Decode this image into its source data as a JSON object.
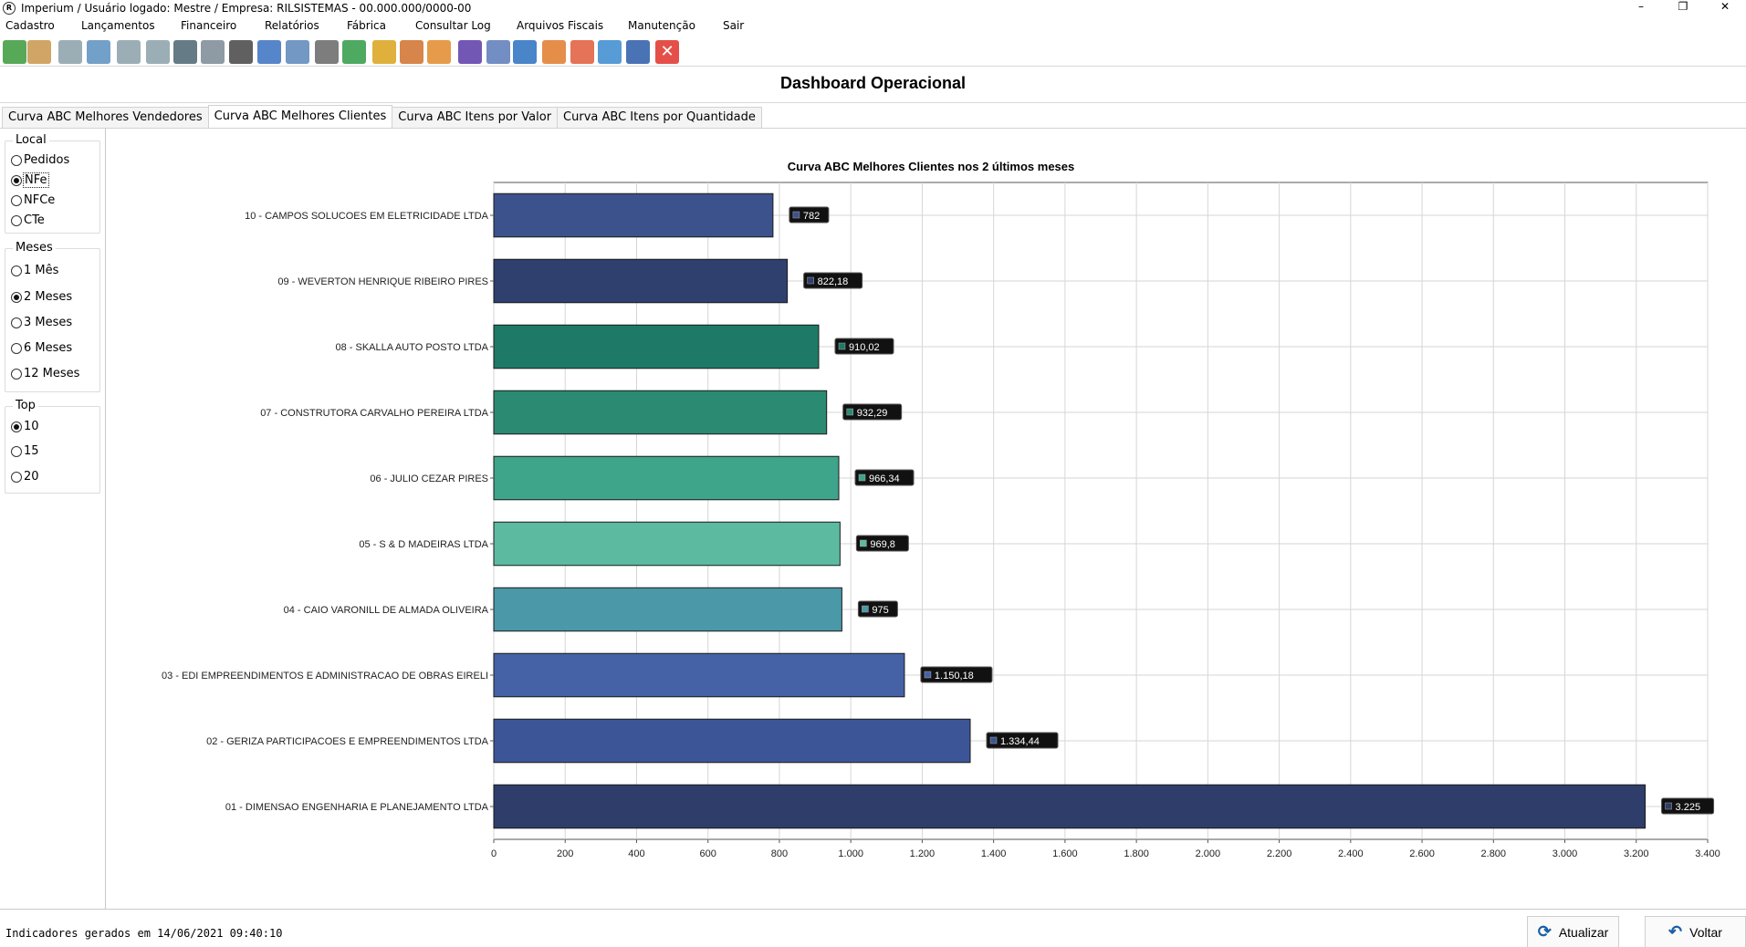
{
  "window": {
    "title": "Imperium / Usuário logado: Mestre   /   Empresa: RILSISTEMAS - 00.000.000/0000-00",
    "controls": [
      "–",
      "❐",
      "✕"
    ]
  },
  "menu": [
    "Cadastro",
    "Lançamentos",
    "Financeiro",
    "Relatórios",
    "Fábrica",
    "Consultar Log",
    "Arquivos Fiscais",
    "Manutenção",
    "Sair"
  ],
  "toolbar": {
    "icons": [
      {
        "name": "book-icon",
        "color": "#3a9a3a"
      },
      {
        "name": "users-icon",
        "color": "#c9954a"
      },
      {
        "name": "tag-icon",
        "color": "#8aa0a8"
      },
      {
        "name": "dfe-icon",
        "color": "#5a8fbf"
      },
      {
        "name": "tag2-icon",
        "color": "#8aa0a8"
      },
      {
        "name": "tag3-icon",
        "color": "#8aa0a8"
      },
      {
        "name": "notebook-icon",
        "color": "#4a6470"
      },
      {
        "name": "safe-icon",
        "color": "#7a8a95"
      },
      {
        "name": "barcode-icon",
        "color": "#444444"
      },
      {
        "name": "card-icon",
        "color": "#3a70c0"
      },
      {
        "name": "check-icon",
        "color": "#5a86b8"
      },
      {
        "name": "cheque-icon",
        "color": "#666666"
      },
      {
        "name": "money-up-icon",
        "color": "#2f9a45"
      },
      {
        "name": "money-down-icon",
        "color": "#d9a21a"
      },
      {
        "name": "factory-icon",
        "color": "#d0702a"
      },
      {
        "name": "sintegra-icon",
        "color": "#e08a2a"
      },
      {
        "name": "email-icon",
        "color": "#5a3aa8"
      },
      {
        "name": "report-icon",
        "color": "#5a7ab8"
      },
      {
        "name": "search-icon",
        "color": "#2a6fc0"
      },
      {
        "name": "person-icon",
        "color": "#e07a2a"
      },
      {
        "name": "person2-icon",
        "color": "#e05a3a"
      },
      {
        "name": "line-chart-icon",
        "color": "#3a8ad0"
      },
      {
        "name": "bar-chart-icon",
        "color": "#2a5aa8"
      },
      {
        "name": "close-icon",
        "color": "#e0322a"
      }
    ]
  },
  "page_title": "Dashboard Operacional",
  "tabs": [
    {
      "label": "Curva ABC Melhores Vendedores",
      "active": false
    },
    {
      "label": "Curva ABC Melhores Clientes",
      "active": true
    },
    {
      "label": "Curva ABC Itens por Valor",
      "active": false
    },
    {
      "label": "Curva ABC Itens por Quantidade",
      "active": false
    }
  ],
  "filters": {
    "local": {
      "title": "Local",
      "options": [
        "Pedidos",
        "NFe",
        "NFCe",
        "CTe"
      ],
      "selected": 1
    },
    "meses": {
      "title": "Meses",
      "options": [
        "1 Mês",
        "2 Meses",
        "3 Meses",
        "6 Meses",
        "12 Meses"
      ],
      "selected": 1
    },
    "top": {
      "title": "Top",
      "options": [
        "10",
        "15",
        "20"
      ],
      "selected": 0
    }
  },
  "chart_data": {
    "type": "bar",
    "orientation": "horizontal",
    "title": "Curva ABC Melhores Clientes nos 2 últimos meses",
    "categories": [
      "10 - CAMPOS SOLUCOES EM ELETRICIDADE LTDA",
      "09 - WEVERTON HENRIQUE RIBEIRO PIRES",
      "08 - SKALLA AUTO POSTO LTDA",
      "07 - CONSTRUTORA CARVALHO PEREIRA LTDA",
      "06 - JULIO CEZAR PIRES",
      "05 - S & D MADEIRAS LTDA",
      "04 - CAIO VARONILL DE ALMADA OLIVEIRA",
      "03 - EDI EMPREENDIMENTOS E ADMINISTRACAO DE OBRAS EIRELI",
      "02 - GERIZA PARTICIPACOES E EMPREENDIMENTOS LTDA",
      "01 - DIMENSAO ENGENHARIA E PLANEJAMENTO LTDA"
    ],
    "values": [
      782,
      822.18,
      910.02,
      932.29,
      966.34,
      969.8,
      975,
      1150.18,
      1334.44,
      3225
    ],
    "value_labels": [
      "782",
      "822,18",
      "910,02",
      "932,29",
      "966,34",
      "969,8",
      "975",
      "1.150,18",
      "1.334,44",
      "3.225"
    ],
    "colors": [
      "#3c528c",
      "#2f3f6e",
      "#1e7a66",
      "#2a8a72",
      "#3ea48a",
      "#5bbaa0",
      "#4a98a8",
      "#4562a6",
      "#3c5596",
      "#2e3d6a"
    ],
    "xlim": [
      0,
      3400
    ],
    "ticks": [
      0,
      200,
      400,
      600,
      800,
      1000,
      1200,
      1400,
      1600,
      1800,
      2000,
      2200,
      2400,
      2600,
      2800,
      3000,
      3200,
      3400
    ],
    "tick_labels": [
      "0",
      "200",
      "400",
      "600",
      "800",
      "1.000",
      "1.200",
      "1.400",
      "1.600",
      "1.800",
      "2.000",
      "2.200",
      "2.400",
      "2.600",
      "2.800",
      "3.000",
      "3.200",
      "3.400"
    ],
    "grid": true
  },
  "status": {
    "text": "Indicadores gerados em 14/06/2021 09:40:10"
  },
  "buttons": {
    "atualizar": "Atualizar",
    "voltar": "Voltar"
  }
}
